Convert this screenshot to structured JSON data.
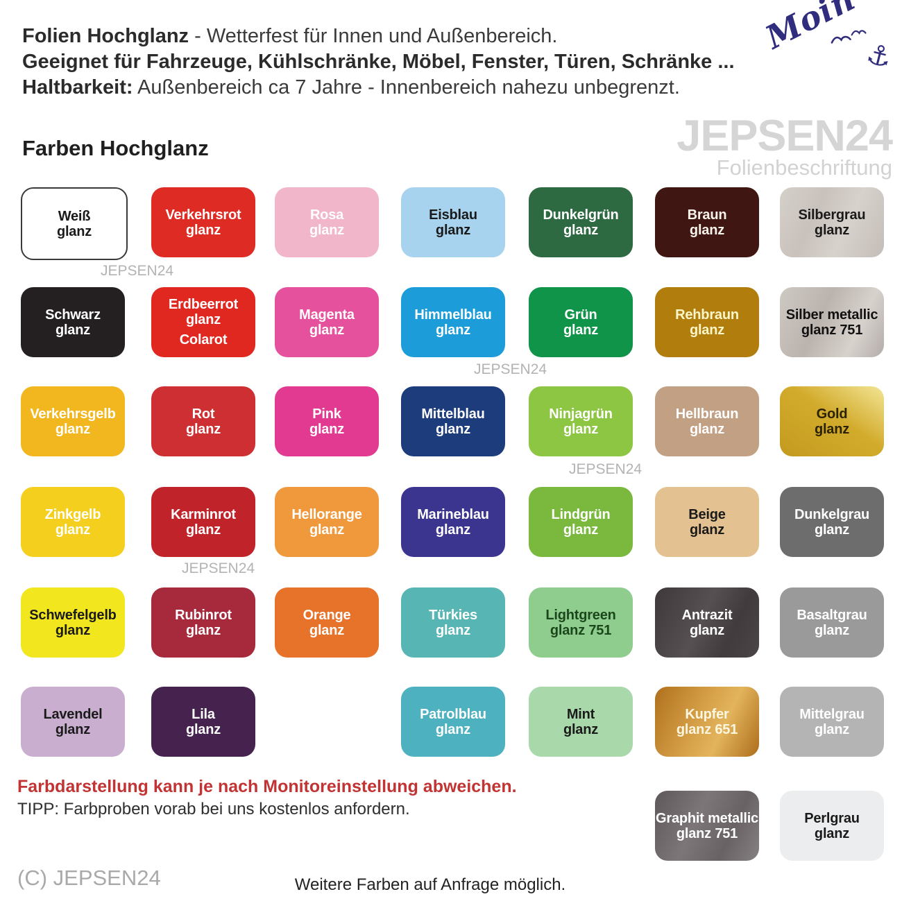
{
  "header": {
    "line1_bold": "Folien Hochglanz",
    "line1_rest": " - Wetterfest für Innen und Außenbereich.",
    "line2_bold": "Geeignet für Fahrzeuge, Kühlschränke, Möbel, Fenster, Türen, Schränke ...",
    "line3_bold": "Haltbarkeit:",
    "line3_rest": " Außenbereich ca 7 Jahre - Innenbereich nahezu unbegrenzt."
  },
  "logo": {
    "text": "Moin",
    "anchor_icon": "⚓",
    "color": "#312d7e"
  },
  "brand_watermark": {
    "name": "JEPSEN24",
    "subtitle": "Folienbeschriftung"
  },
  "inline_watermark_text": "JEPSEN24",
  "section_title": "Farben Hochglanz",
  "swatches": [
    {
      "id": "weiss",
      "lines": [
        "Weiß",
        "glanz"
      ],
      "bg": "#ffffff",
      "fg": "#1a1a1a",
      "border": "#3a3a3a",
      "row": 1,
      "col": 1
    },
    {
      "id": "verkehrsrot",
      "lines": [
        "Verkehrsrot",
        "glanz"
      ],
      "bg": "#de2b23",
      "fg": "#ffffff",
      "row": 1,
      "col": 2
    },
    {
      "id": "rosa",
      "lines": [
        "Rosa",
        "glanz"
      ],
      "bg": "#f2b6ca",
      "fg": "#ffffff",
      "row": 1,
      "col": 3
    },
    {
      "id": "eisblau",
      "lines": [
        "Eisblau",
        "glanz"
      ],
      "bg": "#a8d3ee",
      "fg": "#1a1a1a",
      "row": 1,
      "col": 4
    },
    {
      "id": "dunkelgruen",
      "lines": [
        "Dunkelgrün",
        "glanz"
      ],
      "bg": "#2d6a42",
      "fg": "#ffffff",
      "row": 1,
      "col": 5
    },
    {
      "id": "braun",
      "lines": [
        "Braun",
        "glanz"
      ],
      "bg": "#3f1611",
      "fg": "#f7f2ea",
      "row": 1,
      "col": 6
    },
    {
      "id": "silbergrau",
      "lines": [
        "Silbergrau",
        "glanz"
      ],
      "bg": "#cdc7c2",
      "fg": "#1a1a1a",
      "texture": "silver",
      "row": 1,
      "col": 7
    },
    {
      "id": "schwarz",
      "lines": [
        "Schwarz",
        "glanz"
      ],
      "bg": "#242021",
      "fg": "#ffffff",
      "row": 2,
      "col": 1
    },
    {
      "id": "erdbeerrot",
      "lines": [
        "Erdbeerrot",
        "glanz"
      ],
      "sub": "Colarot",
      "bg": "#e02720",
      "fg": "#ffffff",
      "row": 2,
      "col": 2
    },
    {
      "id": "magenta",
      "lines": [
        "Magenta",
        "glanz"
      ],
      "bg": "#e6519e",
      "fg": "#ffffff",
      "row": 2,
      "col": 3
    },
    {
      "id": "himmelblau",
      "lines": [
        "Himmelblau",
        "glanz"
      ],
      "bg": "#1c9cd9",
      "fg": "#ffffff",
      "row": 2,
      "col": 4
    },
    {
      "id": "gruen",
      "lines": [
        "Grün",
        "glanz"
      ],
      "bg": "#10944a",
      "fg": "#ffffff",
      "row": 2,
      "col": 5
    },
    {
      "id": "rehbraun",
      "lines": [
        "Rehbraun",
        "glanz"
      ],
      "bg": "#b17d0d",
      "fg": "#fdf6c8",
      "row": 2,
      "col": 6
    },
    {
      "id": "silber-metallic",
      "lines": [
        "Silber metallic",
        "glanz 751"
      ],
      "bg": "#c3bdb8",
      "fg": "#111111",
      "texture": "silvermet",
      "row": 2,
      "col": 7
    },
    {
      "id": "verkehrsgelb",
      "lines": [
        "Verkehrsgelb",
        "glanz"
      ],
      "bg": "#f2b71e",
      "fg": "#ffffff",
      "row": 3,
      "col": 1
    },
    {
      "id": "rot",
      "lines": [
        "Rot",
        "glanz"
      ],
      "bg": "#cd2f32",
      "fg": "#ffffff",
      "row": 3,
      "col": 2
    },
    {
      "id": "pink",
      "lines": [
        "Pink",
        "glanz"
      ],
      "bg": "#e23a90",
      "fg": "#ffffff",
      "row": 3,
      "col": 3
    },
    {
      "id": "mittelblau",
      "lines": [
        "Mittelblau",
        "glanz"
      ],
      "bg": "#1c3c7c",
      "fg": "#ffffff",
      "row": 3,
      "col": 4
    },
    {
      "id": "ninjagruen",
      "lines": [
        "Ninjagrün",
        "glanz"
      ],
      "bg": "#8cc642",
      "fg": "#ffffff",
      "row": 3,
      "col": 5
    },
    {
      "id": "hellbraun",
      "lines": [
        "Hellbraun",
        "glanz"
      ],
      "bg": "#c2a083",
      "fg": "#ffffff",
      "row": 3,
      "col": 6
    },
    {
      "id": "gold",
      "lines": [
        "Gold",
        "glanz"
      ],
      "bg": "#d3a92c",
      "fg": "#2a2200",
      "texture": "gold",
      "row": 3,
      "col": 7
    },
    {
      "id": "zinkgelb",
      "lines": [
        "Zinkgelb",
        "glanz"
      ],
      "bg": "#f5cf1d",
      "fg": "#ffffff",
      "row": 4,
      "col": 1
    },
    {
      "id": "karminrot",
      "lines": [
        "Karminrot",
        "glanz"
      ],
      "bg": "#c0232a",
      "fg": "#ffffff",
      "row": 4,
      "col": 2
    },
    {
      "id": "hellorange",
      "lines": [
        "Hellorange",
        "glanz"
      ],
      "bg": "#f0993c",
      "fg": "#ffffff",
      "row": 4,
      "col": 3
    },
    {
      "id": "marineblau",
      "lines": [
        "Marineblau",
        "glanz"
      ],
      "bg": "#3b3590",
      "fg": "#ffffff",
      "row": 4,
      "col": 4
    },
    {
      "id": "lindgruen",
      "lines": [
        "Lindgrün",
        "glanz"
      ],
      "bg": "#7ab93d",
      "fg": "#ffffff",
      "row": 4,
      "col": 5
    },
    {
      "id": "beige",
      "lines": [
        "Beige",
        "glanz"
      ],
      "bg": "#e3c190",
      "fg": "#1a1a1a",
      "row": 4,
      "col": 6
    },
    {
      "id": "dunkelgrau",
      "lines": [
        "Dunkelgrau",
        "glanz"
      ],
      "bg": "#6e6d6e",
      "fg": "#ffffff",
      "row": 4,
      "col": 7
    },
    {
      "id": "schwefelgelb",
      "lines": [
        "Schwefelgelb",
        "glanz"
      ],
      "bg": "#f2e71f",
      "fg": "#1a1a1a",
      "row": 5,
      "col": 1
    },
    {
      "id": "rubinrot",
      "lines": [
        "Rubinrot",
        "glanz"
      ],
      "bg": "#a62a3b",
      "fg": "#ffffff",
      "row": 5,
      "col": 2
    },
    {
      "id": "orange",
      "lines": [
        "Orange",
        "glanz"
      ],
      "bg": "#e7722a",
      "fg": "#ffffff",
      "row": 5,
      "col": 3
    },
    {
      "id": "tuerkies",
      "lines": [
        "Türkies",
        "glanz"
      ],
      "bg": "#57b5b4",
      "fg": "#ffffff",
      "row": 5,
      "col": 4
    },
    {
      "id": "lightgreen",
      "lines": [
        "Lightgreen",
        "glanz 751"
      ],
      "bg": "#8fcd8e",
      "fg": "#1c471c",
      "row": 5,
      "col": 5
    },
    {
      "id": "antrazit",
      "lines": [
        "Antrazit",
        "glanz"
      ],
      "bg": "#484143",
      "fg": "#ffffff",
      "texture": "anthracite",
      "row": 5,
      "col": 6
    },
    {
      "id": "basaltgrau",
      "lines": [
        "Basaltgrau",
        "glanz"
      ],
      "bg": "#9b9a9a",
      "fg": "#ffffff",
      "row": 5,
      "col": 7
    },
    {
      "id": "lavendel",
      "lines": [
        "Lavendel",
        "glanz"
      ],
      "bg": "#c9aed0",
      "fg": "#1a1a1a",
      "row": 6,
      "col": 1
    },
    {
      "id": "lila",
      "lines": [
        "Lila",
        "glanz"
      ],
      "bg": "#45234e",
      "fg": "#ffffff",
      "row": 6,
      "col": 2
    },
    {
      "id": "patrolblau",
      "lines": [
        "Patrolblau",
        "glanz"
      ],
      "bg": "#4eb1c0",
      "fg": "#ffffff",
      "row": 6,
      "col": 4
    },
    {
      "id": "mint",
      "lines": [
        "Mint",
        "glanz"
      ],
      "bg": "#a9d8ab",
      "fg": "#1a1a1a",
      "row": 6,
      "col": 5
    },
    {
      "id": "kupfer",
      "lines": [
        "Kupfer",
        "glanz 651"
      ],
      "bg": "#c5862f",
      "fg": "#fdf6e0",
      "texture": "copper",
      "row": 6,
      "col": 6
    },
    {
      "id": "mittelgrau",
      "lines": [
        "Mittelgrau",
        "glanz"
      ],
      "bg": "#b5b4b4",
      "fg": "#ffffff",
      "row": 6,
      "col": 7
    },
    {
      "id": "graphit-metallic",
      "lines": [
        "Graphit metallic",
        "glanz 751"
      ],
      "bg": "#6e676a",
      "fg": "#ffffff",
      "texture": "graphite",
      "row": 7,
      "col": 6
    },
    {
      "id": "perlgrau",
      "lines": [
        "Perlgrau",
        "glanz"
      ],
      "bg": "#ebedee",
      "fg": "#1a1a1a",
      "row": 7,
      "col": 7
    }
  ],
  "footer": {
    "notice_red": "Farbdarstellung kann je nach Monitoreinstellung abweichen.",
    "notice_color": "#c23434",
    "tip": "TIPP: Farbproben vorab bei uns kostenlos anfordern.",
    "copyright": "(C) JEPSEN24",
    "more_colors": "Weitere Farben auf Anfrage möglich."
  }
}
